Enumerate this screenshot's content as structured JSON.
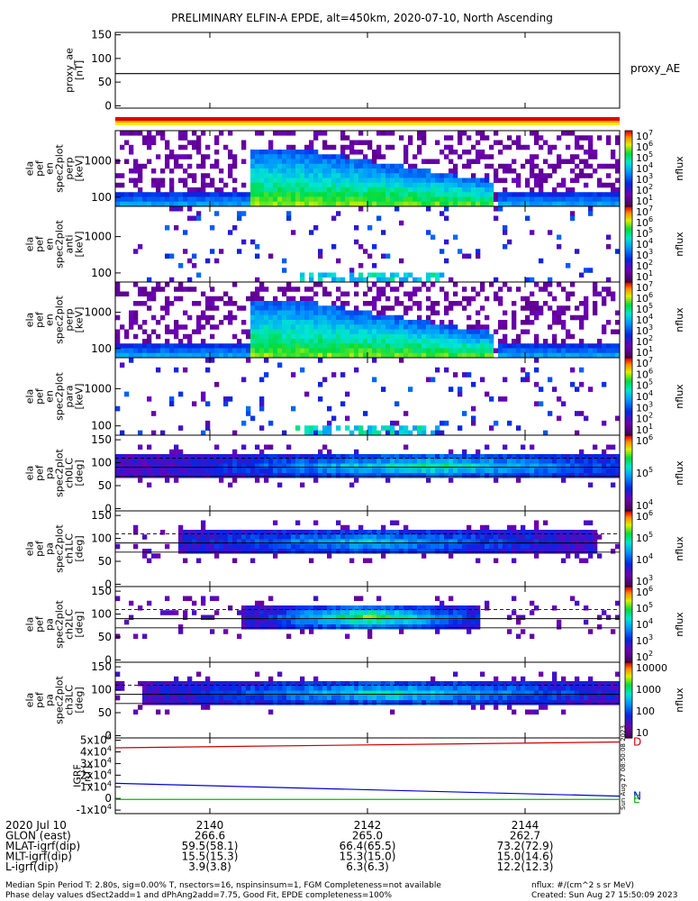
{
  "title": "PRELIMINARY ELFIN-A EPDE, alt=450km, 2020-07-10, North Ascending",
  "chart_data": [
    {
      "type": "line",
      "name": "proxy_ae",
      "ylabel_lines": [
        "proxy_ae",
        "[nT]"
      ],
      "yticks": [
        "150",
        "100",
        "50",
        "0"
      ],
      "ylim": [
        -5,
        155
      ],
      "legend": "proxy_AE",
      "x": [
        2138.8,
        2145.2
      ],
      "values": [
        68,
        68
      ]
    },
    {
      "type": "heatmap",
      "ylabel_lines": [
        "ela",
        "pef",
        "en",
        "spec2plot",
        "perp",
        "[keV]"
      ],
      "yticks": [
        "1000",
        "100"
      ],
      "colorbar_ticks": [
        "10^7",
        "10^6",
        "10^5",
        "10^4",
        "10^3",
        "10^2",
        "10^1"
      ],
      "colorbar_label": "nflux"
    },
    {
      "type": "heatmap",
      "ylabel_lines": [
        "ela",
        "pef",
        "en",
        "spec2plot",
        "anti",
        "[keV]"
      ],
      "yticks": [
        "1000",
        "100"
      ],
      "colorbar_ticks": [
        "10^7",
        "10^6",
        "10^5",
        "10^4",
        "10^3",
        "10^2",
        "10^1"
      ],
      "colorbar_label": "nflux"
    },
    {
      "type": "heatmap",
      "ylabel_lines": [
        "ela",
        "pef",
        "en",
        "spec2plot",
        "perp",
        "[keV]"
      ],
      "yticks": [
        "1000",
        "100"
      ],
      "colorbar_ticks": [
        "10^7",
        "10^6",
        "10^5",
        "10^4",
        "10^3",
        "10^2",
        "10^1"
      ],
      "colorbar_label": "nflux"
    },
    {
      "type": "heatmap",
      "ylabel_lines": [
        "ela",
        "pef",
        "en",
        "spec2plot",
        "para",
        "[keV]"
      ],
      "yticks": [
        "1000",
        "100"
      ],
      "colorbar_ticks": [
        "10^7",
        "10^6",
        "10^5",
        "10^4",
        "10^3",
        "10^2",
        "10^1"
      ],
      "colorbar_label": "nflux"
    },
    {
      "type": "heatmap",
      "ylabel_lines": [
        "ela",
        "pef",
        "pa",
        "spec2plot",
        "ch0LC",
        "[deg]"
      ],
      "yticks": [
        "150",
        "100",
        "50",
        "0"
      ],
      "colorbar_ticks": [
        "10^6",
        "10^5",
        "10^4"
      ],
      "colorbar_label": "nflux"
    },
    {
      "type": "heatmap",
      "ylabel_lines": [
        "ela",
        "pef",
        "pa",
        "spec2plot",
        "ch1LC",
        "[deg]"
      ],
      "yticks": [
        "150",
        "100",
        "50",
        "0"
      ],
      "colorbar_ticks": [
        "10^6",
        "10^5",
        "10^4",
        "10^3"
      ],
      "colorbar_label": "nflux"
    },
    {
      "type": "heatmap",
      "ylabel_lines": [
        "ela",
        "pef",
        "pa",
        "spec2plot",
        "ch2LC",
        "[deg]"
      ],
      "yticks": [
        "150",
        "100",
        "50",
        "0"
      ],
      "colorbar_ticks": [
        "10^6",
        "10^5",
        "10^4",
        "10^3",
        "10^2"
      ],
      "colorbar_label": "nflux"
    },
    {
      "type": "heatmap",
      "ylabel_lines": [
        "ela",
        "pef",
        "pa",
        "spec2plot",
        "ch3LC",
        "[deg]"
      ],
      "yticks": [
        "150",
        "100",
        "50",
        "0"
      ],
      "colorbar_ticks": [
        "10000",
        "1000",
        "100",
        "10"
      ],
      "colorbar_label": "nflux"
    },
    {
      "type": "line",
      "ylabel_lines": [
        "IGRF",
        "[nT]"
      ],
      "yticks": [
        "5x10^4",
        "4x10^4",
        "3x10^4",
        "2x10^4",
        "1x10^4",
        "0",
        "-1x10^4"
      ],
      "ylim": [
        -13000,
        52000
      ],
      "x": [
        2138.8,
        2145.2
      ],
      "series": [
        {
          "name": "D",
          "color": "#cc0000",
          "values": [
            43500,
            48500
          ]
        },
        {
          "name": "N",
          "color": "#0000dd",
          "values": [
            13000,
            2000
          ]
        },
        {
          "name": "E",
          "color": "#00bb00",
          "values": [
            -800,
            -800
          ]
        }
      ],
      "side_note": "Sun Aug 27 08:50:08 2023"
    }
  ],
  "xaxis": {
    "tick_labels": [
      "2140",
      "2142",
      "2144"
    ],
    "ticks": [
      2140,
      2142,
      2144
    ],
    "range": [
      2138.8,
      2145.2
    ],
    "rows": [
      {
        "label": "2020 Jul 10",
        "values": [
          "2140",
          "2142",
          "2144"
        ]
      },
      {
        "label": "GLON (east)",
        "values": [
          "266.6",
          "265.0",
          "262.7"
        ]
      },
      {
        "label": "MLAT-igrf(dip)",
        "values": [
          "59.5(58.1)",
          "66.4(65.5)",
          "73.2(72.9)"
        ]
      },
      {
        "label": "MLT-igrf(dip)",
        "values": [
          "15.5(15.3)",
          "15.3(15.0)",
          "15.0(14.6)"
        ]
      },
      {
        "label": "L-igrf(dip)",
        "values": [
          "3.9(3.8)",
          "6.3(6.3)",
          "12.2(12.3)"
        ]
      }
    ]
  },
  "footer": {
    "line1": "Median Spin Period T: 2.80s, sig=0.00% T, nsectors=16, nspinsinsum=1, FGM Completeness=not available",
    "line2": "Phase delay values dSect2add=1 and dPhAng2add=7.75, Good Fit, EPDE completeness=100%",
    "nflux_units": "nflux: #/(cm^2 s sr MeV)",
    "created": "Created: Sun Aug 27 15:50:09 2023"
  }
}
